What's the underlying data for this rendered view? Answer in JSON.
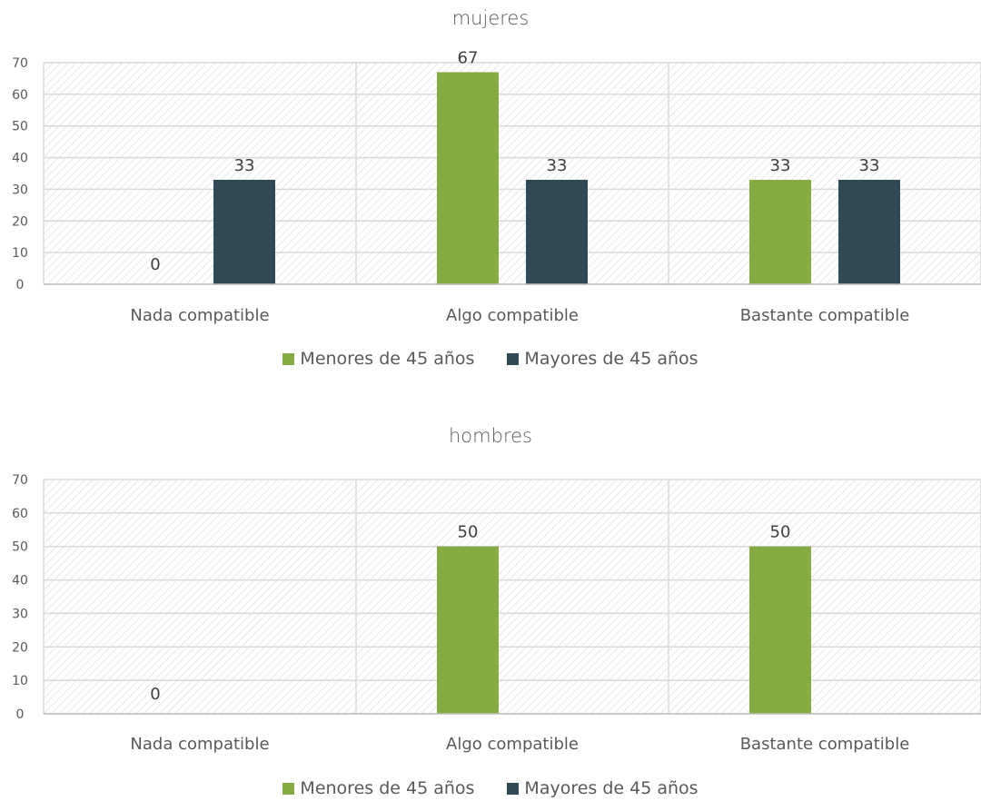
{
  "chart_data": [
    {
      "type": "bar",
      "title": "mujeres",
      "categories": [
        "Nada compatible",
        "Algo compatible",
        "Bastante compatible"
      ],
      "series": [
        {
          "name": "Menores de 45 años",
          "values": [
            0,
            67,
            33
          ],
          "color": "#84ac40"
        },
        {
          "name": "Mayores de 45 años",
          "values": [
            33,
            33,
            33
          ],
          "color": "#2f4a54"
        }
      ],
      "data_labels": [
        [
          "0",
          "67",
          "33"
        ],
        [
          "33",
          "33",
          "33"
        ]
      ],
      "y_ticks": [
        "0",
        "10",
        "20",
        "30",
        "40",
        "50",
        "60",
        "70"
      ],
      "ylim": [
        0,
        70
      ],
      "grid": true,
      "legend": "bottom"
    },
    {
      "type": "bar",
      "title": "hombres",
      "categories": [
        "Nada compatible",
        "Algo compatible",
        "Bastante compatible"
      ],
      "series": [
        {
          "name": "Menores de 45 años",
          "values": [
            0,
            50,
            50
          ],
          "color": "#84ac40"
        },
        {
          "name": "Mayores de 45 años",
          "values": [
            null,
            null,
            null
          ],
          "color": "#2f4a54"
        }
      ],
      "data_labels": [
        [
          "0",
          "50",
          "50"
        ],
        [
          "",
          "",
          ""
        ]
      ],
      "y_ticks": [
        "0",
        "10",
        "20",
        "30",
        "40",
        "50",
        "60",
        "70"
      ],
      "ylim": [
        0,
        70
      ],
      "grid": true,
      "legend": "bottom"
    }
  ]
}
